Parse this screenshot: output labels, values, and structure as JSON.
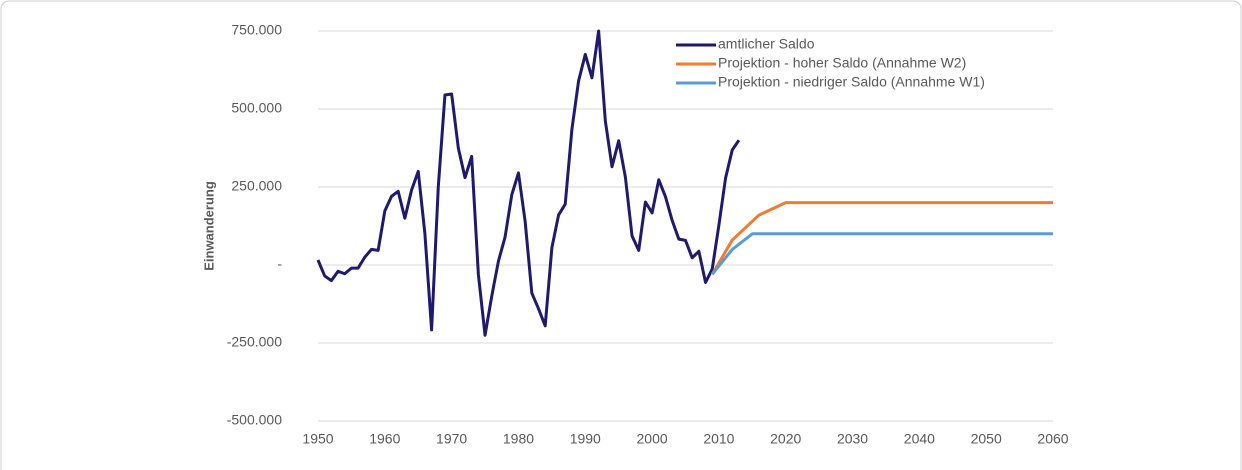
{
  "chart_data": {
    "type": "line",
    "y_label": "Einwanderung",
    "ylim": [
      -500000,
      750000
    ],
    "yticks": [
      {
        "value": 750000,
        "label": "750.000"
      },
      {
        "value": 500000,
        "label": "500.000"
      },
      {
        "value": 250000,
        "label": "250.000"
      },
      {
        "value": 0,
        "label": "-"
      },
      {
        "value": -250000,
        "label": "-250.000"
      },
      {
        "value": -500000,
        "label": "-500.000"
      }
    ],
    "xlim": [
      1950,
      2060
    ],
    "xticks": [
      1950,
      1960,
      1970,
      1980,
      1990,
      2000,
      2010,
      2020,
      2030,
      2040,
      2050,
      2060
    ],
    "grid": true,
    "legend": "top-right",
    "series": [
      {
        "name": "amtlicher Saldo",
        "color": "#1f1a6b",
        "x": [
          1950,
          1951,
          1952,
          1953,
          1954,
          1955,
          1956,
          1957,
          1958,
          1959,
          1960,
          1961,
          1962,
          1963,
          1964,
          1965,
          1966,
          1967,
          1968,
          1969,
          1970,
          1971,
          1972,
          1973,
          1974,
          1975,
          1976,
          1977,
          1978,
          1979,
          1980,
          1981,
          1982,
          1983,
          1984,
          1985,
          1986,
          1987,
          1988,
          1989,
          1990,
          1991,
          1992,
          1993,
          1994,
          1995,
          1996,
          1997,
          1998,
          1999,
          2000,
          2001,
          2002,
          2003,
          2004,
          2005,
          2006,
          2007,
          2008,
          2009,
          2010,
          2011,
          2012,
          2013
        ],
        "values": [
          16000,
          -35000,
          -50000,
          -20000,
          -28000,
          -10000,
          -10000,
          25000,
          50000,
          47000,
          173000,
          220000,
          236000,
          150000,
          240000,
          300000,
          100000,
          -208000,
          250000,
          545000,
          548000,
          375000,
          280000,
          348000,
          -30000,
          -225000,
          -100000,
          12000,
          90000,
          225000,
          295000,
          140000,
          -90000,
          -140000,
          -195000,
          55000,
          160000,
          195000,
          435000,
          590000,
          675000,
          600000,
          750000,
          462000,
          315000,
          398000,
          282000,
          93000,
          47000,
          202000,
          167000,
          273000,
          219000,
          143000,
          83000,
          79000,
          23000,
          44000,
          -56000,
          -13000,
          128000,
          279000,
          369000,
          400000
        ]
      },
      {
        "name": "Projektion - hoher Saldo (Annahme W2)",
        "color": "#ed7d31",
        "x": [
          2009,
          2012,
          2016,
          2020,
          2060
        ],
        "values": [
          -30000,
          80000,
          160000,
          200000,
          200000
        ]
      },
      {
        "name": "Projektion - niedriger Saldo (Annahme W1)",
        "color": "#5b9bd5",
        "x": [
          2009,
          2012,
          2015,
          2060
        ],
        "values": [
          -30000,
          50000,
          100000,
          100000
        ]
      }
    ]
  }
}
